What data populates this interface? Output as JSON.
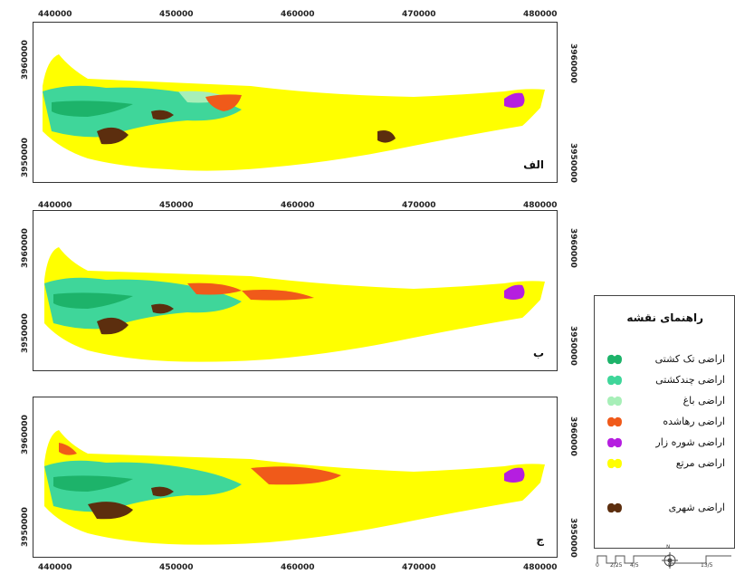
{
  "panels": [
    {
      "id": "alef",
      "label": "الف"
    },
    {
      "id": "be",
      "label": "ب"
    },
    {
      "id": "je",
      "label": "ج"
    }
  ],
  "axis": {
    "x_ticks": [
      "440000",
      "450000",
      "460000",
      "470000",
      "480000"
    ],
    "y_ticks": [
      "3960000",
      "3950000"
    ]
  },
  "legend": {
    "title": "راهنمای نقشه",
    "items": [
      {
        "label": "اراضی تک کشتی",
        "color": "#1db36a"
      },
      {
        "label": "اراضی چندکشتی",
        "color": "#3fd69a"
      },
      {
        "label": "اراضی باغ",
        "color": "#a7efb8"
      },
      {
        "label": "اراضی رهاشده",
        "color": "#f05a1a"
      },
      {
        "label": "اراضی شوره زار",
        "color": "#b51ee0"
      },
      {
        "label": "اراضی مرتع",
        "color": "#ffff00"
      },
      {
        "label": "اراضی شهری",
        "color": "#5c2e0e"
      }
    ]
  },
  "north_arrow": {
    "label": "N"
  },
  "scale_bar": {
    "labels": [
      "0",
      "2/25",
      "4/5",
      "9",
      "13/5"
    ]
  },
  "colors": {
    "rangeland": "#ffff00",
    "single_crop": "#1db36a",
    "multi_crop": "#3fd69a",
    "orchard": "#a7efb8",
    "abandoned": "#f05a1a",
    "saline": "#b51ee0",
    "urban": "#5c2e0e"
  }
}
